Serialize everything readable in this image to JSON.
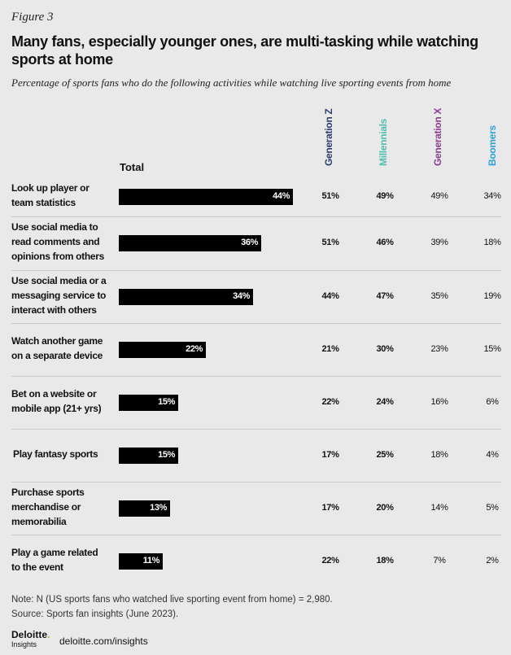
{
  "figure_label": "Figure 3",
  "title": "Many fans, especially younger ones, are multi-tasking while watching sports at home",
  "subtitle": "Percentage of sports fans who do the following activities while watching live sporting events from home",
  "total_header": "Total",
  "colors": {
    "bar": "#000000",
    "genz": "#2b3c6e",
    "millennials": "#4fbfae",
    "genx": "#8a3d8f",
    "boomers": "#2aa3d8"
  },
  "chart_data": {
    "type": "bar",
    "orientation": "horizontal",
    "categories": [
      "Look up player or team statistics",
      "Use social media to read comments and opinions from others",
      "Use social media or a messaging service to interact with others",
      "Watch another game on a separate device",
      "Bet on a website or mobile app (21+ yrs)",
      "Play fantasy sports",
      "Purchase sports merchandise or memorabilia",
      "Play a game related to the event"
    ],
    "category_lines": [
      [
        "Look up player or",
        "team statistics"
      ],
      [
        "Use social media to",
        "read comments and",
        "opinions from others"
      ],
      [
        "Use social media or a",
        "messaging service to",
        "interact with others"
      ],
      [
        "Watch another game",
        "on a separate device"
      ],
      [
        "Bet on a website or",
        "mobile app (21+ yrs)"
      ],
      [
        "Play fantasy sports"
      ],
      [
        "Purchase sports",
        "merchandise or",
        "memorabilia"
      ],
      [
        "Play a game related",
        "to the event"
      ]
    ],
    "series": [
      {
        "name": "Total",
        "values": [
          44,
          36,
          34,
          22,
          15,
          15,
          13,
          11
        ],
        "labels": [
          "44%",
          "36%",
          "34%",
          "22%",
          "15%",
          "15%",
          "13%",
          "11%"
        ]
      },
      {
        "name": "Generation Z",
        "values": [
          51,
          51,
          44,
          21,
          22,
          17,
          17,
          22
        ],
        "labels": [
          "51%",
          "51%",
          "44%",
          "21%",
          "22%",
          "17%",
          "17%",
          "22%"
        ]
      },
      {
        "name": "Millennials",
        "values": [
          49,
          46,
          47,
          30,
          24,
          25,
          20,
          18
        ],
        "labels": [
          "49%",
          "46%",
          "47%",
          "30%",
          "24%",
          "25%",
          "20%",
          "18%"
        ]
      },
      {
        "name": "Generation X",
        "values": [
          49,
          39,
          35,
          23,
          16,
          18,
          14,
          7
        ],
        "labels": [
          "49%",
          "39%",
          "35%",
          "23%",
          "16%",
          "18%",
          "14%",
          "7%"
        ]
      },
      {
        "name": "Boomers",
        "values": [
          34,
          18,
          19,
          15,
          6,
          4,
          5,
          2
        ],
        "labels": [
          "34%",
          "18%",
          "19%",
          "15%",
          "6%",
          "4%",
          "5%",
          "2%"
        ]
      }
    ]
  },
  "note": "Note: N (US sports fans who watched live sporting event from home) = 2,980.",
  "source": "Source: Sports fan insights (June 2023).",
  "logo": {
    "name": "Deloitte",
    "dot": ".",
    "sub": "Insights"
  },
  "site": "deloitte.com/insights"
}
